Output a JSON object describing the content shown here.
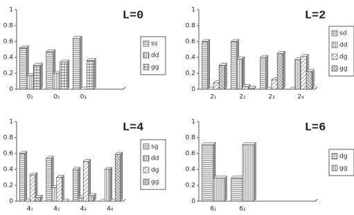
{
  "chart_data": [
    {
      "type": "bar",
      "title": "L=0",
      "categories": [
        "0₁",
        "0₂",
        "0₃",
        null
      ],
      "series": [
        {
          "name": "ss",
          "color": "#ffffff",
          "hatch": "horizontal",
          "values": [
            0.52,
            0.47,
            0.64,
            null
          ]
        },
        {
          "name": "dd",
          "color": "#ffffff",
          "hatch": "vertical",
          "values": [
            0.17,
            0.2,
            0,
            null
          ]
        },
        {
          "name": "gg",
          "color": "#ffffff",
          "hatch": "cross",
          "values": [
            0.3,
            0.34,
            0.36,
            null
          ]
        }
      ],
      "ylim": [
        0,
        1
      ],
      "yticks": [
        0,
        0.2,
        0.4,
        0.6,
        0.8,
        1
      ]
    },
    {
      "type": "bar",
      "title": "L=2",
      "categories": [
        "2₁",
        "2₂",
        "2₃",
        "2₄"
      ],
      "series": [
        {
          "name": "sd",
          "color": "#ffffff",
          "hatch": "horizontal",
          "values": [
            0.6,
            0.6,
            0.4,
            0
          ]
        },
        {
          "name": "dd",
          "color": "#ffffff",
          "hatch": "vertical",
          "values": [
            0,
            0.38,
            0,
            0.37
          ]
        },
        {
          "name": "dg",
          "color": "#ffffff",
          "hatch": "diagonal",
          "values": [
            0.08,
            0.03,
            0.12,
            0.41
          ]
        },
        {
          "name": "gg",
          "color": "#ffffff",
          "hatch": "dense",
          "values": [
            0.3,
            0.01,
            0.45,
            0.22
          ]
        }
      ],
      "ylim": [
        0,
        1
      ],
      "yticks": [
        0,
        0.2,
        0.4,
        0.6,
        0.8,
        1
      ]
    },
    {
      "type": "bar",
      "title": "L=4",
      "categories": [
        "4₁",
        "4₂",
        "4₃",
        "4₄"
      ],
      "series": [
        {
          "name": "sg",
          "color": "#ffffff",
          "hatch": "horizontal",
          "values": [
            0.6,
            0.54,
            0.4,
            0
          ]
        },
        {
          "name": "dd",
          "color": "#ffffff",
          "hatch": "vertical",
          "values": [
            0,
            0.17,
            0.04,
            0.4
          ]
        },
        {
          "name": "dg",
          "color": "#ffffff",
          "hatch": "diagonal",
          "values": [
            0.33,
            0.3,
            0.5,
            0
          ]
        },
        {
          "name": "gg",
          "color": "#ffffff",
          "hatch": "dense",
          "values": [
            0.05,
            0,
            0.07,
            0.59
          ]
        }
      ],
      "ylim": [
        0,
        1
      ],
      "yticks": [
        0,
        0.2,
        0.4,
        0.6,
        0.8,
        1
      ]
    },
    {
      "type": "bar",
      "title": "L=6",
      "categories": [
        "6₁",
        "6₂",
        null,
        null
      ],
      "series": [
        {
          "name": "dg",
          "color": "#ffffff",
          "hatch": "horizontal",
          "values": [
            0.71,
            0.29,
            null,
            null
          ]
        },
        {
          "name": "gg",
          "color": "#ffffff",
          "hatch": "vertical",
          "values": [
            0.29,
            0.71,
            null,
            null
          ]
        }
      ],
      "ylim": [
        0,
        1
      ],
      "yticks": [
        0,
        0.2,
        0.4,
        0.6,
        0.8,
        1
      ]
    }
  ]
}
